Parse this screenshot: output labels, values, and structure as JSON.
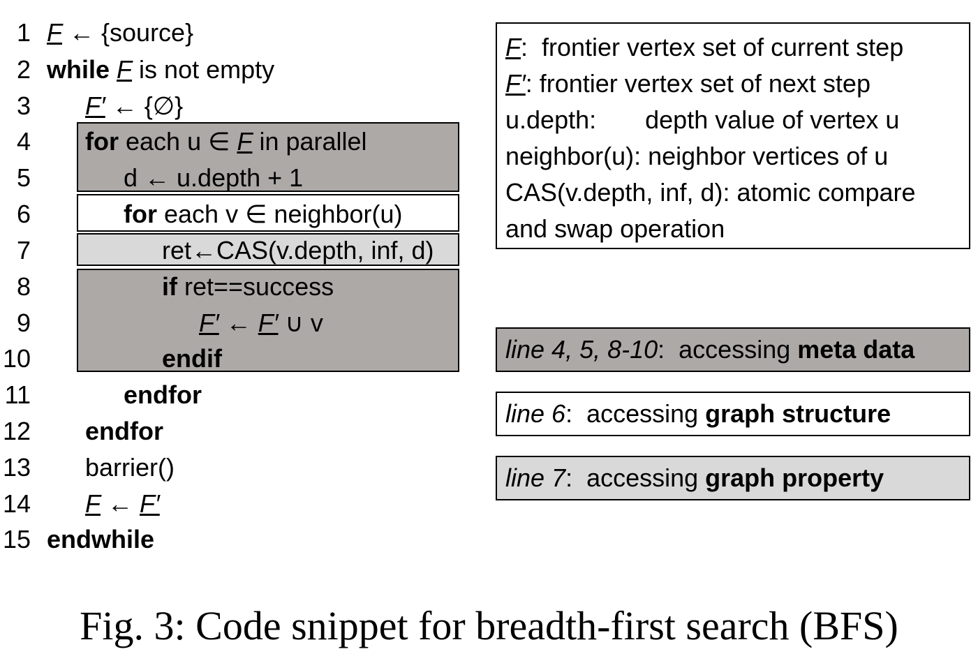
{
  "code": {
    "lines": [
      {
        "n": "1",
        "parts": [
          {
            "t": "F",
            "u": true
          },
          {
            "t": " ← {source}"
          }
        ]
      },
      {
        "n": "2",
        "parts": [
          {
            "t": "while",
            "b": true
          },
          {
            "t": " "
          },
          {
            "t": "F",
            "u": true
          },
          {
            "t": " is not empty"
          }
        ]
      },
      {
        "n": "3",
        "parts": [
          {
            "t": "F′",
            "u": true
          },
          {
            "t": " ← {∅}"
          }
        ]
      },
      {
        "n": "4",
        "parts": [
          {
            "t": "for",
            "b": true
          },
          {
            "t": " each u ∈ "
          },
          {
            "t": "F",
            "u": true
          },
          {
            "t": " in parallel"
          }
        ]
      },
      {
        "n": "5",
        "parts": [
          {
            "t": "d ← u.depth + 1"
          }
        ]
      },
      {
        "n": "6",
        "parts": [
          {
            "t": "for",
            "b": true
          },
          {
            "t": " each v ∈ neighbor(u)"
          }
        ]
      },
      {
        "n": "7",
        "parts": [
          {
            "t": "ret←CAS(v.depth, inf, d)"
          }
        ]
      },
      {
        "n": "8",
        "parts": [
          {
            "t": "if",
            "b": true
          },
          {
            "t": " ret==success"
          }
        ]
      },
      {
        "n": "9",
        "parts": [
          {
            "t": "F′",
            "u": true
          },
          {
            "t": " ← "
          },
          {
            "t": "F′",
            "u": true
          },
          {
            "t": " ∪ v"
          }
        ]
      },
      {
        "n": "10",
        "parts": [
          {
            "t": "endif",
            "b": true
          }
        ]
      },
      {
        "n": "11",
        "parts": [
          {
            "t": "endfor",
            "b": true
          }
        ]
      },
      {
        "n": "12",
        "parts": [
          {
            "t": "endfor",
            "b": true
          }
        ]
      },
      {
        "n": "13",
        "parts": [
          {
            "t": "barrier()"
          }
        ]
      },
      {
        "n": "14",
        "parts": [
          {
            "t": "F",
            "u": true
          },
          {
            "t": " ← "
          },
          {
            "t": "F′",
            "u": true
          }
        ]
      },
      {
        "n": "15",
        "parts": [
          {
            "t": "endwhile",
            "b": true
          }
        ]
      }
    ]
  },
  "legend": {
    "lines": [
      [
        {
          "t": "F",
          "u": true
        },
        {
          "t": ":  frontier vertex set of current step"
        }
      ],
      [
        {
          "t": "F′",
          "u": true
        },
        {
          "t": ": frontier vertex set of next step"
        }
      ],
      [
        {
          "t": "u.depth:       depth value of vertex u"
        }
      ],
      [
        {
          "t": "neighbor(u): neighbor vertices of u"
        }
      ],
      [
        {
          "t": "CAS(v.depth, inf, d): atomic compare"
        }
      ],
      [
        {
          "t": "and swap operation"
        }
      ]
    ]
  },
  "keys": [
    {
      "lines_ref": "line 4, 5, 8-10",
      "text": ":  accessing ",
      "bold": "meta data"
    },
    {
      "lines_ref": "line 6",
      "text": ":  accessing ",
      "bold": "graph structure"
    },
    {
      "lines_ref": "line 7",
      "text": ":  accessing ",
      "bold": "graph property"
    }
  ],
  "colors": {
    "meta_data": "#aca9a7",
    "graph_structure": "#ffffff",
    "graph_property": "#d9d9d9"
  },
  "caption": "Fig. 3: Code snippet for breadth-first search (BFS)"
}
